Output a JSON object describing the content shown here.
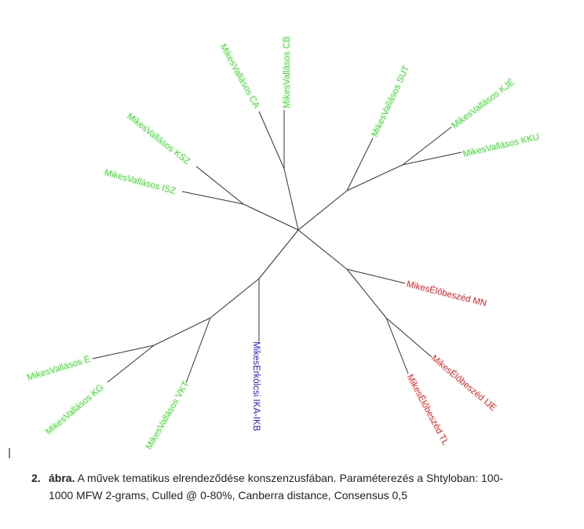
{
  "figure": {
    "leaves": [
      {
        "label": "MikesVallásos CB",
        "color": "#33dd22"
      },
      {
        "label": "MikesVallásos CA",
        "color": "#33dd22"
      },
      {
        "label": "MikesVallásos KSZ",
        "color": "#33dd22"
      },
      {
        "label": "MikesVallásos ISZ",
        "color": "#33dd22"
      },
      {
        "label": "MikesVallásos SUT",
        "color": "#33dd22"
      },
      {
        "label": "MikesVallásos KJÉ",
        "color": "#33dd22"
      },
      {
        "label": "MikesVallásos KKU",
        "color": "#33dd22"
      },
      {
        "label": "MikesErkölcsi IKA-IKB",
        "color": "#2222cc"
      },
      {
        "label": "MikesVallásos É",
        "color": "#33dd22"
      },
      {
        "label": "MikesVallásos KG",
        "color": "#33dd22"
      },
      {
        "label": "MikesVallásos VKT",
        "color": "#33dd22"
      },
      {
        "label": "MikesÉlőbeszéd MN",
        "color": "#e02020"
      },
      {
        "label": "MikesÉlőbeszéd IJE",
        "color": "#e02020"
      },
      {
        "label": "MikesÉlőbeszéd TL",
        "color": "#e02020"
      }
    ]
  },
  "caption": {
    "number": "2.",
    "label": "ábra.",
    "line_1": "A művek tematikus elrendeződése konszenzusfában. Paraméterezés a Shtyloban: 100-",
    "line_2": "1000 MFW 2-grams, Culled @ 0-80%, Canberra distance, Consensus 0,5"
  }
}
